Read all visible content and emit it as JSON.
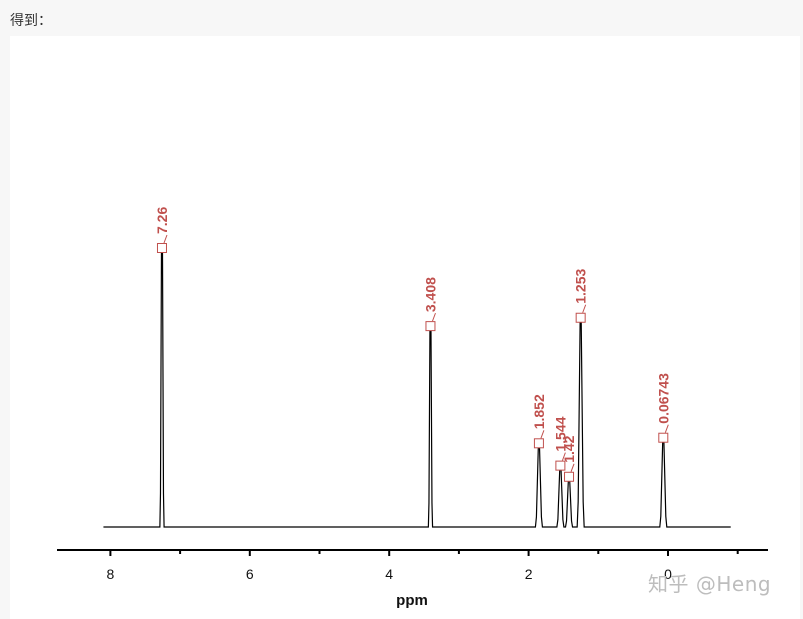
{
  "caption": "得到：",
  "watermark": "知乎 @Heng",
  "colors": {
    "spectrum": "#000000",
    "peak_marker": "#c0504d",
    "background": "#f7f7f7",
    "figure_bg": "#ffffff"
  },
  "chart_data": {
    "type": "line",
    "title": "",
    "xlabel": "ppm",
    "ylabel": "",
    "xlim": [
      8.6,
      -1.4
    ],
    "x_reversed": true,
    "x_ticks": [
      8,
      6,
      4,
      2,
      0
    ],
    "x_tick_labels": [
      "8",
      "6",
      "4",
      "2",
      "0"
    ],
    "minor_ticks": [
      7,
      5,
      3,
      1,
      -1
    ],
    "grid": false,
    "legend": null,
    "spectrum_range_ppm": [
      8.1,
      -0.9
    ],
    "peaks": [
      {
        "ppm": 7.26,
        "label": "7.26",
        "rel_height": 1.0
      },
      {
        "ppm": 3.408,
        "label": "3.408",
        "rel_height": 0.72
      },
      {
        "ppm": 1.852,
        "label": "1.852",
        "rel_height": 0.3
      },
      {
        "ppm": 1.544,
        "label": "1.544",
        "rel_height": 0.22
      },
      {
        "ppm": 1.42,
        "label": "1.42",
        "rel_height": 0.18
      },
      {
        "ppm": 1.253,
        "label": "1.253",
        "rel_height": 0.75
      },
      {
        "ppm": 0.06743,
        "label": "0.06743",
        "rel_height": 0.32
      }
    ]
  }
}
